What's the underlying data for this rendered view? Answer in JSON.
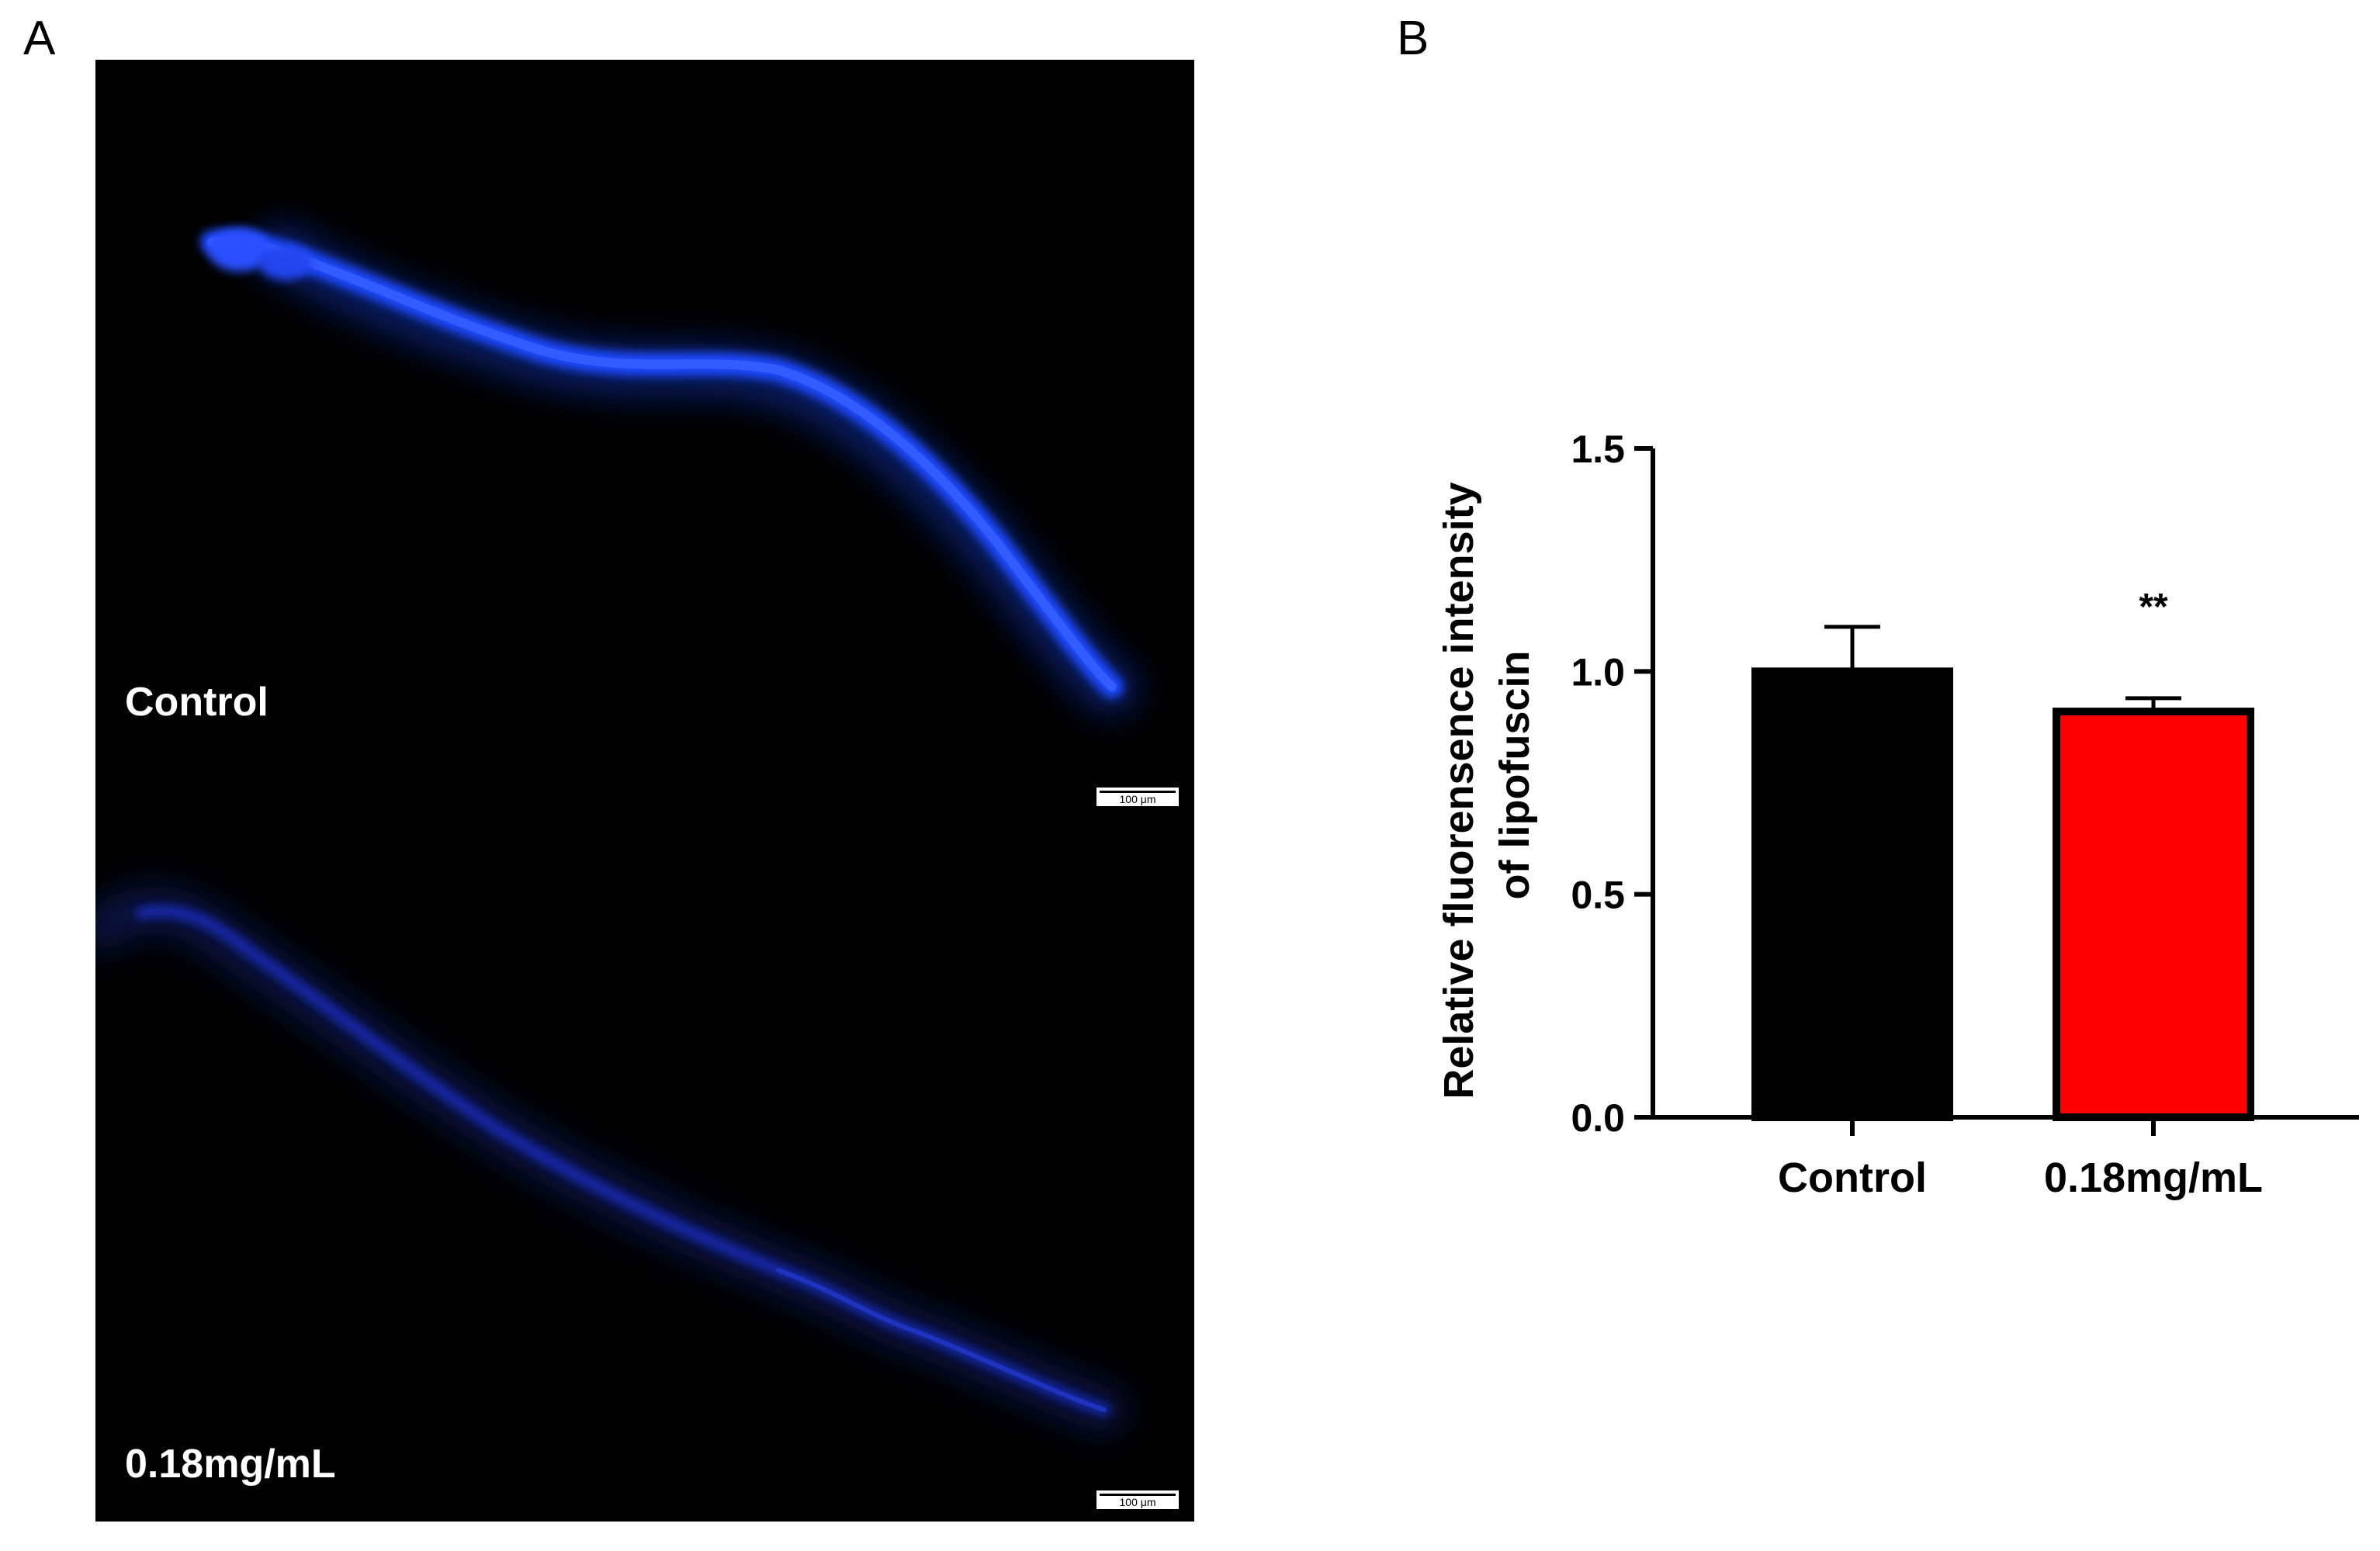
{
  "panels": {
    "a": {
      "letter": "A",
      "upper_label": "Control",
      "lower_label": "0.18mg/mL",
      "scale_bar_upper": "100 μm",
      "scale_bar_lower": "100 μm",
      "stain_color": "#1a40ff",
      "background_color": "#000000"
    },
    "b": {
      "letter": "B"
    }
  },
  "chart_data": {
    "type": "bar",
    "categories": [
      "Control",
      "0.18mg/mL"
    ],
    "values": [
      1.0,
      0.91
    ],
    "error": [
      0.1,
      0.03
    ],
    "bar_colors": [
      "#000000",
      "#ff0000"
    ],
    "annotations": [
      "",
      "**"
    ],
    "ylabel_line1": "Relative fluorensence intensity",
    "ylabel_line2": "of  lipofuscin",
    "ylim": [
      0.0,
      1.5
    ],
    "yticks": [
      "0.0",
      "0.5",
      "1.0",
      "1.5"
    ],
    "ytick_values": [
      0.0,
      0.5,
      1.0,
      1.5
    ]
  }
}
